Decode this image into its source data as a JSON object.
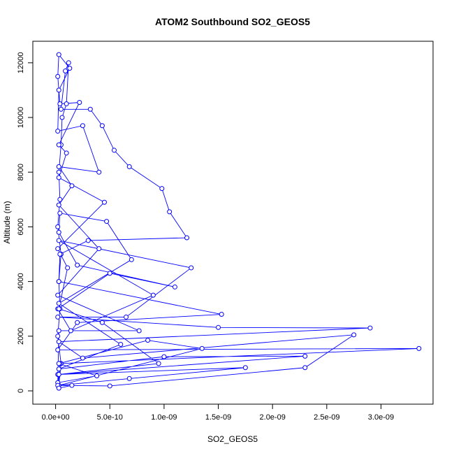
{
  "chart_data": {
    "type": "line",
    "title": "ATOM2 Southbound SO2_GEOS5",
    "x_label": "SO2_GEOS5",
    "y_label": "Altitude (m)",
    "color": "#0000ff",
    "markers": true,
    "x": [
      3e-11,
      5e-11,
      2e-11,
      4e-11,
      3e-11,
      5e-11,
      2e-11,
      4e-11,
      3e-11,
      5e-11,
      6e-11,
      1e-10,
      1.2e-10,
      9e-11,
      5e-11,
      3.2e-10,
      4.3e-10,
      5.4e-10,
      6.8e-10,
      9.8e-10,
      1.05e-09,
      1.21e-09,
      3e-10,
      4e-11,
      3e-11,
      1.53e-09,
      2e-10,
      2e-11,
      3.35e-09,
      4e-11,
      3e-11,
      5e-10,
      2.3e-09,
      2.75e-09,
      2.5e-10,
      3e-11,
      2.9e-09,
      1.5e-09,
      2e-11,
      6.5e-10,
      1.25e-09,
      3e-11,
      9e-10,
      1.4e-10,
      2e-11,
      5e-10,
      1.1e-09,
      2e-10,
      3e-11,
      4e-11,
      4.7e-10,
      7e-10,
      3e-11,
      6e-10,
      3e-11,
      1e-09,
      2.3e-09,
      2e-11,
      1.75e-09,
      6.8e-10,
      3e-11,
      1.35e-09,
      8.5e-10,
      3e-11,
      3.8e-10,
      2e-11,
      3e-11,
      7.7e-10,
      2e-11,
      4e-10,
      3e-11,
      1.5e-10,
      3e-11,
      4e-10,
      2.5e-10,
      2e-11,
      3e-11,
      1.3e-10,
      3e-11,
      2e-11,
      4e-11,
      2.2e-10,
      3e-11,
      1e-10,
      3e-11,
      4.5e-10,
      2e-11,
      1.1e-10,
      3e-11,
      4.3e-10,
      9.5e-10,
      3e-11,
      2e-11,
      1.5e-10,
      3e-11
    ],
    "values": [
      200,
      1000,
      2000,
      3000,
      4000,
      5000,
      6000,
      7000,
      8000,
      9000,
      10000,
      10500,
      12000,
      11700,
      10300,
      10300,
      9700,
      8800,
      8200,
      7400,
      6550,
      5600,
      5500,
      5000,
      4000,
      2800,
      2500,
      1500,
      1550,
      1000,
      200,
      180,
      850,
      2050,
      1200,
      1800,
      2300,
      2320,
      2700,
      2700,
      4500,
      5500,
      3500,
      2200,
      3000,
      4300,
      3800,
      4600,
      5800,
      6500,
      6200,
      4800,
      3200,
      1700,
      800,
      1250,
      1270,
      600,
      850,
      450,
      200,
      1550,
      1850,
      1000,
      550,
      300,
      2200,
      2200,
      3500,
      5200,
      6800,
      7500,
      8200,
      8000,
      9700,
      9500,
      11000,
      11800,
      12300,
      11500,
      10500,
      10550,
      9000,
      8700,
      7800,
      6900,
      5200,
      4500,
      3000,
      2500,
      1000,
      600,
      200,
      200,
      100
    ],
    "xlim": [
      -2.1e-10,
      3.48e-09
    ],
    "ylim": [
      -486,
      12788
    ],
    "xticks": [
      {
        "value": 0,
        "label": "0.0e+00"
      },
      {
        "value": 5e-10,
        "label": "5.0e-10"
      },
      {
        "value": 1e-09,
        "label": "1.0e-09"
      },
      {
        "value": 1.5e-09,
        "label": "1.5e-09"
      },
      {
        "value": 2e-09,
        "label": "2.0e-09"
      },
      {
        "value": 2.5e-09,
        "label": "2.5e-09"
      },
      {
        "value": 3e-09,
        "label": "3.0e-09"
      }
    ],
    "yticks": [
      0,
      2000,
      4000,
      6000,
      8000,
      10000,
      12000
    ]
  }
}
